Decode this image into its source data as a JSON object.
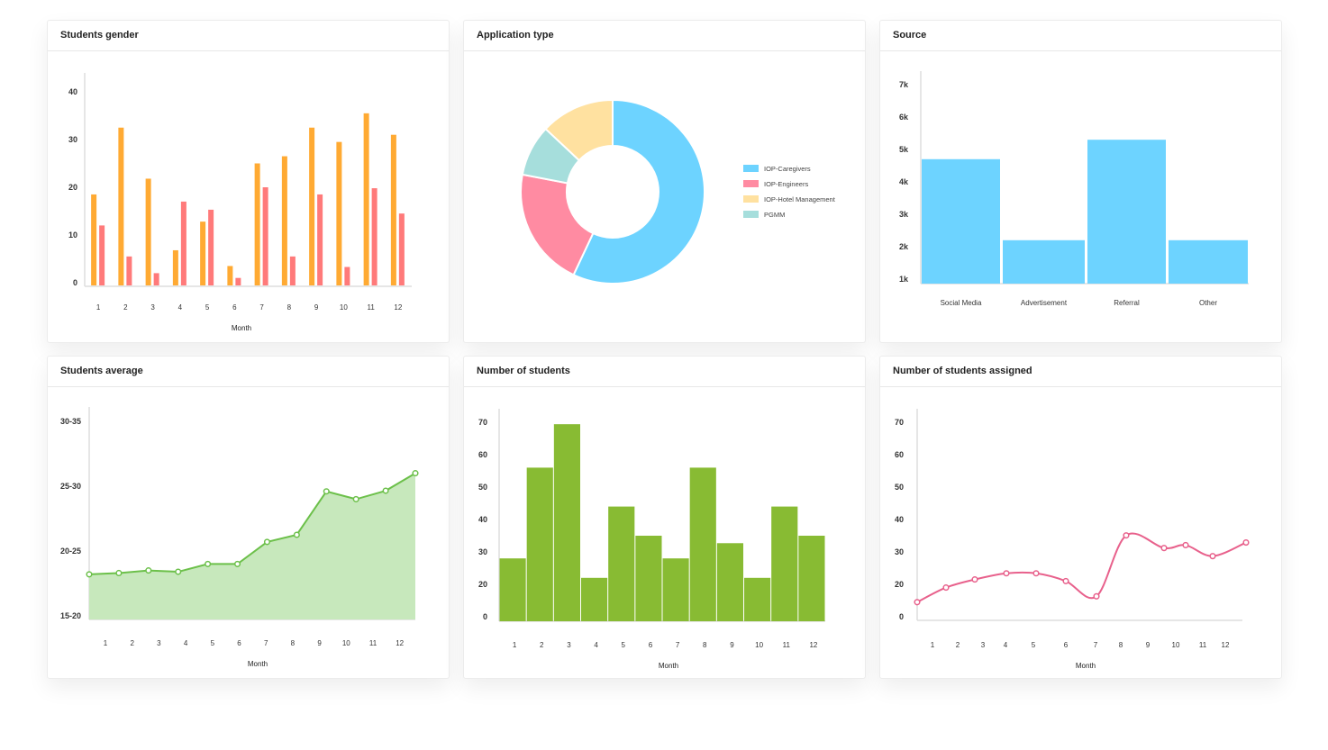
{
  "colors": {
    "orange": "#FFAA33",
    "red": "#FF7A7A",
    "blue": "#6DD3FF",
    "pink": "#FF8BA2",
    "yellow": "#FFE1A0",
    "teal": "#A6DEDC",
    "green": "#88BB33",
    "green_fill": "#C7E8BC",
    "green_line": "#6CC04A",
    "pink_line": "#E8618C"
  },
  "cards": [
    {
      "title": "Students gender"
    },
    {
      "title": "Application type"
    },
    {
      "title": "Source"
    },
    {
      "title": "Students average"
    },
    {
      "title": "Number of students"
    },
    {
      "title": "Number of students assigned"
    }
  ],
  "chart_data": [
    {
      "type": "bar",
      "xlabel": "Month",
      "categories": [
        "1",
        "2",
        "3",
        "4",
        "5",
        "6",
        "7",
        "8",
        "9",
        "10",
        "11",
        "12"
      ],
      "yticks": [
        "0",
        "10",
        "20",
        "30",
        "40"
      ],
      "ylim": [
        0,
        44
      ],
      "series": [
        {
          "values": [
            18.5,
            32.5,
            21.8,
            6.8,
            12.8,
            3.5,
            25,
            26.5,
            32.5,
            29.5,
            35.5,
            31
          ]
        },
        {
          "values": [
            12,
            5.5,
            2,
            17,
            15.3,
            1,
            20,
            5.5,
            18.5,
            3.3,
            19.8,
            14.5
          ]
        }
      ]
    },
    {
      "type": "pie",
      "donut": true,
      "legend": "right",
      "slices": [
        {
          "label": "IOP-Caregivers",
          "value": 57
        },
        {
          "label": "IOP-Engineers",
          "value": 21
        },
        {
          "label": "PGMM",
          "value": 9
        },
        {
          "label": "IOP-Hotel Management",
          "value": 13
        }
      ],
      "legend_order": [
        "IOP-Caregivers",
        "IOP-Engineers",
        "IOP-Hotel Management",
        "PGMM"
      ]
    },
    {
      "type": "bar",
      "categories": [
        "Social Media",
        "Advertisement",
        "Referral",
        "Other"
      ],
      "values": [
        4700,
        2200,
        5300,
        2200
      ],
      "yticks": [
        "1k",
        "2k",
        "3k",
        "4k",
        "5k",
        "6k",
        "7k"
      ]
    },
    {
      "type": "area",
      "xlabel": "Month",
      "categories": [
        "1",
        "2",
        "3",
        "4",
        "5",
        "6",
        "7",
        "8",
        "9",
        "10",
        "11",
        "12"
      ],
      "yticks": [
        "15-20",
        "20-25",
        "25-30",
        "30-35"
      ],
      "values": [
        18.2,
        18.3,
        18.5,
        18.4,
        19.0,
        19.0,
        20.7,
        21.25,
        24.6,
        24.0,
        24.65,
        26.0
      ]
    },
    {
      "type": "bar",
      "xlabel": "Month",
      "categories": [
        "1",
        "2",
        "3",
        "4",
        "5",
        "6",
        "7",
        "8",
        "9",
        "10",
        "11",
        "12"
      ],
      "yticks": [
        "0",
        "20",
        "30",
        "40",
        "50",
        "60",
        "70"
      ],
      "values": [
        28,
        56,
        69.4,
        22,
        44,
        35,
        28,
        56,
        32.7,
        22,
        44,
        35
      ]
    },
    {
      "type": "line",
      "xlabel": "Month",
      "categories": [
        "1",
        "2",
        "3",
        "4",
        "5",
        "6",
        "7",
        "8",
        "9",
        "10",
        "11",
        "12"
      ],
      "yticks": [
        "0",
        "20",
        "30",
        "40",
        "50",
        "60",
        "70"
      ],
      "values": [
        14.5,
        19,
        21.5,
        23.4,
        23.4,
        21,
        16.3,
        35.1,
        31.2,
        32.1,
        28.7,
        32.9
      ]
    }
  ]
}
